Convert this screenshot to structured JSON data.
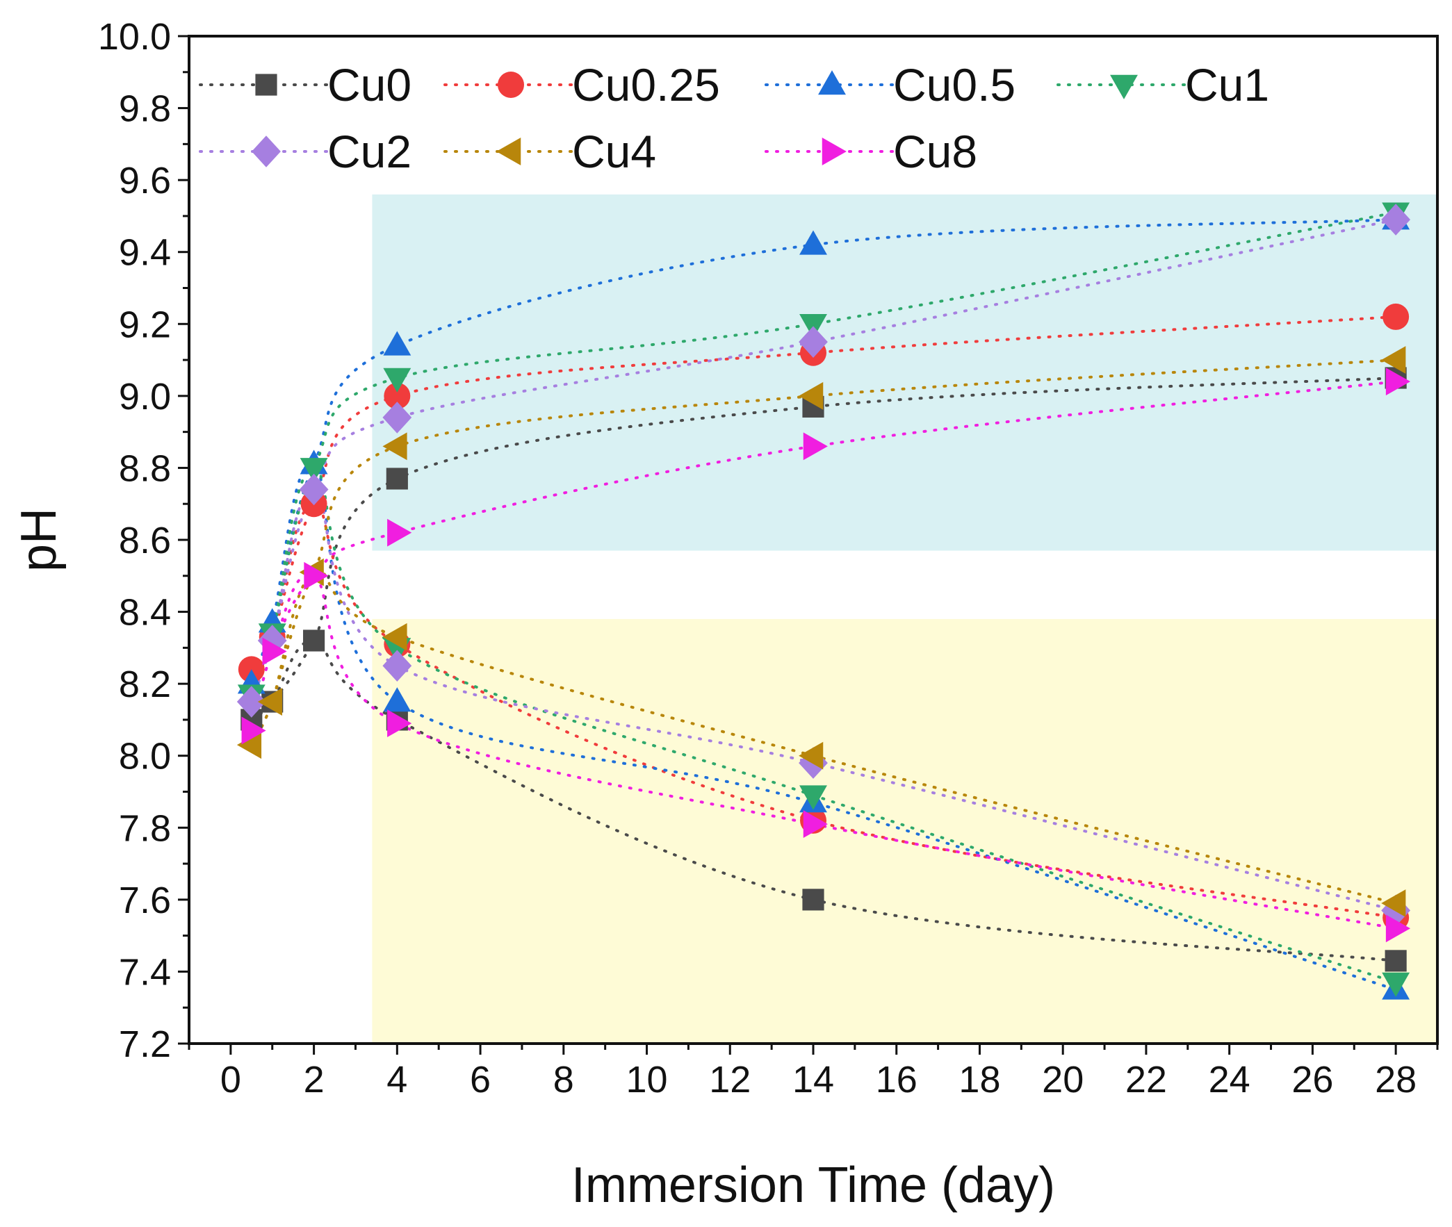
{
  "chart_data": {
    "type": "scatter",
    "line_style": "dotted",
    "title": "",
    "xlabel": "Immersion Time (day)",
    "ylabel": "pH",
    "xlim": [
      -1,
      29
    ],
    "ylim": [
      7.2,
      10.0
    ],
    "x_ticks": [
      0,
      2,
      4,
      6,
      8,
      10,
      12,
      14,
      16,
      18,
      20,
      22,
      24,
      26,
      28
    ],
    "y_ticks": [
      7.2,
      7.4,
      7.6,
      7.8,
      8.0,
      8.2,
      8.4,
      8.6,
      8.8,
      9.0,
      9.2,
      9.4,
      9.6,
      9.8,
      10.0
    ],
    "legend_position": "top-left",
    "highlight_regions": [
      {
        "name": "high-ph-region",
        "x_from": 3.4,
        "x_to": 29,
        "y_from": 8.57,
        "y_to": 9.56,
        "color": "#d9f1f3"
      },
      {
        "name": "low-ph-region",
        "x_from": 3.4,
        "x_to": 29,
        "y_from": 7.2,
        "y_to": 8.38,
        "color": "#fefbd6"
      }
    ],
    "series": [
      {
        "name": "Cu0",
        "color": "#4a4a4a",
        "marker": "square",
        "upper": {
          "x": [
            0.5,
            1,
            2,
            4,
            14,
            28
          ],
          "y": [
            8.1,
            8.15,
            8.32,
            8.77,
            8.97,
            9.05
          ]
        },
        "lower": {
          "x": [
            0.5,
            1,
            2,
            4,
            14,
            28
          ],
          "y": [
            8.1,
            8.15,
            8.32,
            8.1,
            7.6,
            7.43
          ]
        }
      },
      {
        "name": "Cu0.25",
        "color": "#f03c3c",
        "marker": "circle",
        "upper": {
          "x": [
            0.5,
            1,
            2,
            4,
            14,
            28
          ],
          "y": [
            8.24,
            8.33,
            8.7,
            9.0,
            9.12,
            9.22
          ]
        },
        "lower": {
          "x": [
            0.5,
            1,
            2,
            4,
            14,
            28
          ],
          "y": [
            8.24,
            8.33,
            8.7,
            8.31,
            7.82,
            7.55
          ]
        }
      },
      {
        "name": "Cu0.5",
        "color": "#1e6fd9",
        "marker": "triangle-up",
        "upper": {
          "x": [
            0.5,
            1,
            2,
            4,
            14,
            28
          ],
          "y": [
            8.2,
            8.37,
            8.81,
            9.14,
            9.42,
            9.49
          ]
        },
        "lower": {
          "x": [
            0.5,
            1,
            2,
            4,
            14,
            28
          ],
          "y": [
            8.2,
            8.37,
            8.81,
            8.15,
            7.87,
            7.35
          ]
        }
      },
      {
        "name": "Cu1",
        "color": "#2ea86b",
        "marker": "triangle-down",
        "upper": {
          "x": [
            0.5,
            1,
            2,
            4,
            14,
            28
          ],
          "y": [
            8.17,
            8.34,
            8.8,
            9.05,
            9.2,
            9.51
          ]
        },
        "lower": {
          "x": [
            0.5,
            1,
            2,
            4,
            14,
            28
          ],
          "y": [
            8.17,
            8.34,
            8.8,
            8.3,
            7.89,
            7.37
          ]
        }
      },
      {
        "name": "Cu2",
        "color": "#a67fe0",
        "marker": "diamond",
        "upper": {
          "x": [
            0.5,
            1,
            2,
            4,
            14,
            28
          ],
          "y": [
            8.15,
            8.32,
            8.74,
            8.94,
            9.15,
            9.49
          ]
        },
        "lower": {
          "x": [
            0.5,
            1,
            2,
            4,
            14,
            28
          ],
          "y": [
            8.15,
            8.32,
            8.74,
            8.25,
            7.98,
            7.57
          ]
        }
      },
      {
        "name": "Cu4",
        "color": "#b8860b",
        "marker": "triangle-left",
        "upper": {
          "x": [
            0.5,
            1,
            2,
            4,
            14,
            28
          ],
          "y": [
            8.03,
            8.15,
            8.51,
            8.86,
            9.0,
            9.1
          ]
        },
        "lower": {
          "x": [
            0.5,
            1,
            2,
            4,
            14,
            28
          ],
          "y": [
            8.03,
            8.15,
            8.51,
            8.33,
            8.0,
            7.59
          ]
        }
      },
      {
        "name": "Cu8",
        "color": "#f01ee0",
        "marker": "triangle-right",
        "upper": {
          "x": [
            0.5,
            1,
            2,
            4,
            14,
            28
          ],
          "y": [
            8.07,
            8.29,
            8.5,
            8.62,
            8.86,
            9.04
          ]
        },
        "lower": {
          "x": [
            0.5,
            1,
            2,
            4,
            14,
            28
          ],
          "y": [
            8.07,
            8.29,
            8.5,
            8.09,
            7.81,
            7.52
          ]
        }
      }
    ]
  }
}
